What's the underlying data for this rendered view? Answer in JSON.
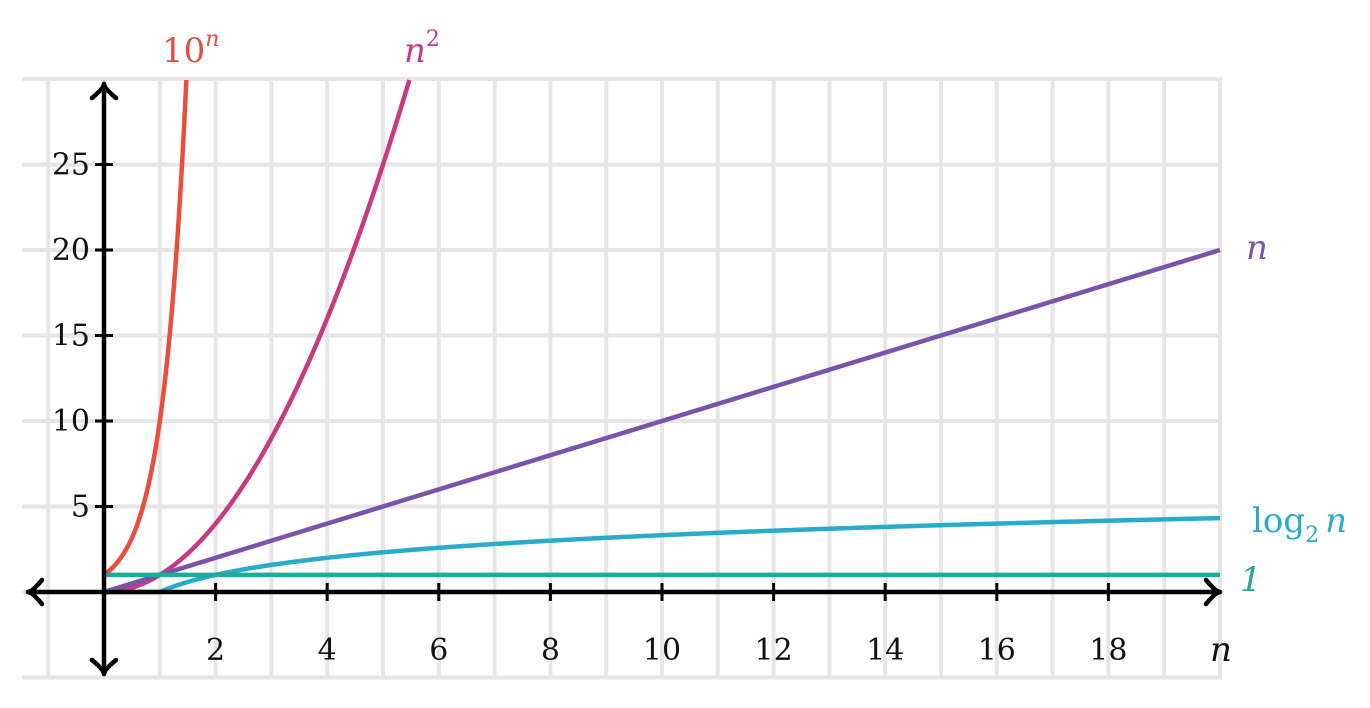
{
  "chart_data": {
    "type": "line",
    "xlabel": "n",
    "ylabel": "",
    "xlim": [
      -1.5,
      20
    ],
    "ylim": [
      -5,
      30
    ],
    "x_ticks": [
      2,
      4,
      6,
      8,
      10,
      12,
      14,
      16,
      18
    ],
    "y_ticks": [
      5,
      10,
      15,
      20,
      25
    ],
    "grid": true,
    "series": [
      {
        "name": "10^n",
        "label_base": "10",
        "label_sup": "n",
        "color": "#e84d3d",
        "function": "10^n",
        "x": [
          0,
          0.25,
          0.5,
          0.75,
          1.0,
          1.25,
          1.4
        ],
        "y": [
          1,
          1.78,
          3.16,
          5.62,
          10,
          17.8,
          25.1
        ]
      },
      {
        "name": "n^2",
        "label_base": "n",
        "label_sup": "2",
        "color": "#c83a7e",
        "function": "n^2",
        "x": [
          0,
          1,
          2,
          3,
          4,
          5,
          5.5
        ],
        "y": [
          0,
          1,
          4,
          9,
          16,
          25,
          30.25
        ]
      },
      {
        "name": "n",
        "label_base": "n",
        "color": "#7854ab",
        "function": "n",
        "x": [
          0,
          20
        ],
        "y": [
          0,
          20
        ]
      },
      {
        "name": "log2 n",
        "label_base": "log",
        "label_sub": "2",
        "label_var": "n",
        "color": "#29abca",
        "function": "log2_clamped",
        "x": [
          1,
          2,
          4,
          8,
          16,
          20
        ],
        "y": [
          0,
          1,
          2,
          3,
          4,
          4.32
        ]
      },
      {
        "name": "1",
        "label_base": "1",
        "color": "#1fab9a",
        "function": "constant",
        "x": [
          0,
          20
        ],
        "y": [
          1,
          1
        ]
      }
    ]
  }
}
